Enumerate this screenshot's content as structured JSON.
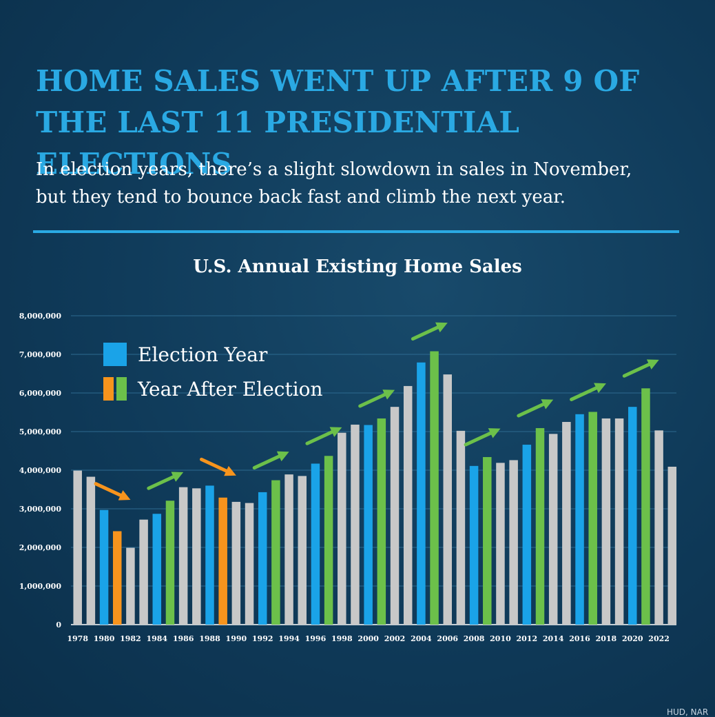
{
  "headline_line1": "HOME SALES WENT UP AFTER 9 OF",
  "headline_line2": "THE LAST 11 PRESIDENTIAL ELECTIONS",
  "subtitle_line1": "In election years, there’s a slight slowdown in sales in November,",
  "subtitle_line2": "but they tend to bounce back fast and climb the next year.",
  "source_text": "HUD, NAR",
  "colors": {
    "election": "#1aa3e8",
    "after_up": "#6cc04a",
    "after_down": "#f7941d",
    "other": "#c8c8c8",
    "accent": "#2aa9e3"
  },
  "chart_data": {
    "type": "bar",
    "title": "U.S. Annual Existing Home Sales",
    "xlabel": "",
    "ylabel": "",
    "ylim": [
      0,
      8000000
    ],
    "yticks": [
      0,
      1000000,
      2000000,
      3000000,
      4000000,
      5000000,
      6000000,
      7000000,
      8000000
    ],
    "ytick_labels": [
      "0",
      "1,000,000",
      "2,000,000",
      "3,000,000",
      "4,000,000",
      "5,000,000",
      "6,000,000",
      "7,000,000",
      "8,000,000"
    ],
    "xtick_labels": [
      "1978",
      "1980",
      "1982",
      "1984",
      "1986",
      "1988",
      "1990",
      "1992",
      "1994",
      "1996",
      "1998",
      "2000",
      "2002",
      "2004",
      "2006",
      "2008",
      "2010",
      "2012",
      "2014",
      "2016",
      "2018",
      "2020",
      "2022"
    ],
    "grid": true,
    "legend_position": "top-left",
    "legend": [
      {
        "label": "Election Year",
        "swatches": [
          "election"
        ]
      },
      {
        "label": "Year After Election",
        "swatches": [
          "after_down",
          "after_up"
        ]
      }
    ],
    "categories": [
      1978,
      1979,
      1980,
      1981,
      1982,
      1983,
      1984,
      1985,
      1986,
      1987,
      1988,
      1989,
      1990,
      1991,
      1992,
      1993,
      1994,
      1995,
      1996,
      1997,
      1998,
      1999,
      2000,
      2001,
      2002,
      2003,
      2004,
      2005,
      2006,
      2007,
      2008,
      2009,
      2010,
      2011,
      2012,
      2013,
      2014,
      2015,
      2016,
      2017,
      2018,
      2019,
      2020,
      2021,
      2022,
      2023
    ],
    "values": [
      3990000,
      3830000,
      2970000,
      2420000,
      1990000,
      2720000,
      2870000,
      3210000,
      3560000,
      3530000,
      3600000,
      3290000,
      3180000,
      3150000,
      3430000,
      3740000,
      3890000,
      3850000,
      4170000,
      4370000,
      4970000,
      5180000,
      5170000,
      5340000,
      5640000,
      6180000,
      6790000,
      7080000,
      6480000,
      5020000,
      4110000,
      4340000,
      4190000,
      4260000,
      4660000,
      5090000,
      4940000,
      5250000,
      5450000,
      5510000,
      5340000,
      5340000,
      5640000,
      6120000,
      5030000,
      4090000
    ],
    "bar_kind": [
      "other",
      "other",
      "election",
      "after_down",
      "other",
      "other",
      "election",
      "after_up",
      "other",
      "other",
      "election",
      "after_down",
      "other",
      "other",
      "election",
      "after_up",
      "other",
      "other",
      "election",
      "after_up",
      "other",
      "other",
      "election",
      "after_up",
      "other",
      "other",
      "election",
      "after_up",
      "other",
      "other",
      "election",
      "after_up",
      "other",
      "other",
      "election",
      "after_up",
      "other",
      "other",
      "election",
      "after_up",
      "other",
      "other",
      "election",
      "after_up",
      "other",
      "other"
    ],
    "trend_arrows": [
      {
        "from": 1980,
        "to": 1981,
        "direction": "down"
      },
      {
        "from": 1984,
        "to": 1985,
        "direction": "up"
      },
      {
        "from": 1988,
        "to": 1989,
        "direction": "down"
      },
      {
        "from": 1992,
        "to": 1993,
        "direction": "up"
      },
      {
        "from": 1996,
        "to": 1997,
        "direction": "up"
      },
      {
        "from": 2000,
        "to": 2001,
        "direction": "up"
      },
      {
        "from": 2004,
        "to": 2005,
        "direction": "up"
      },
      {
        "from": 2008,
        "to": 2009,
        "direction": "up"
      },
      {
        "from": 2012,
        "to": 2013,
        "direction": "up"
      },
      {
        "from": 2016,
        "to": 2017,
        "direction": "up"
      },
      {
        "from": 2020,
        "to": 2021,
        "direction": "up"
      }
    ]
  }
}
